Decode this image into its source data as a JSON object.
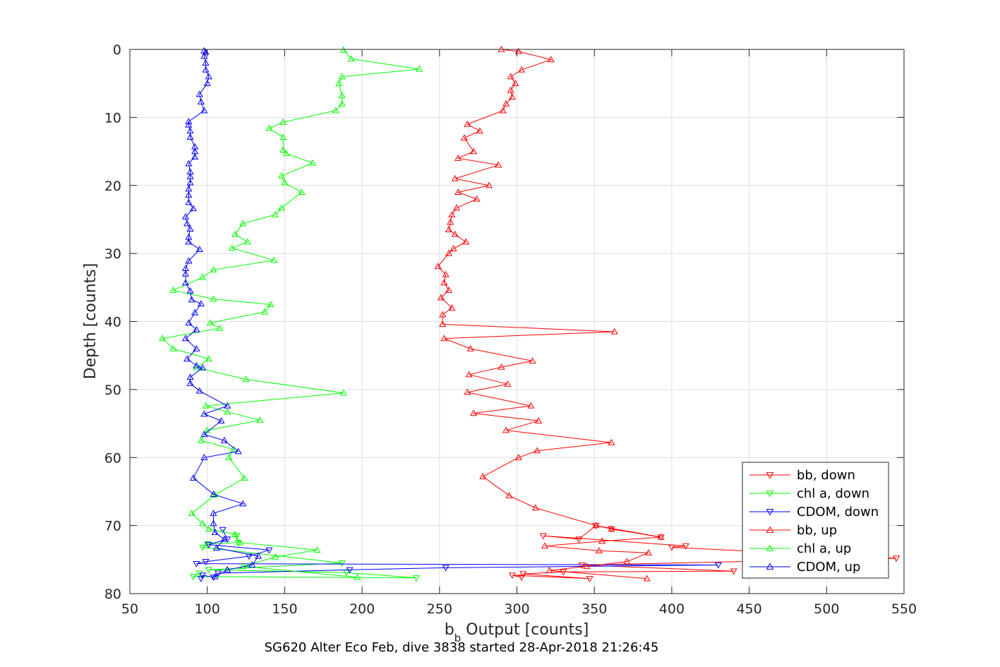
{
  "caption": "SG620 Alter Eco Feb, dive 3838 started 28-Apr-2018 21:26:45",
  "chart_data": {
    "type": "line",
    "xlabel_main": "b",
    "xlabel_sub": "b",
    "xlabel_rest": " Output [counts]",
    "ylabel": "Depth [counts]",
    "xlim": [
      50,
      550
    ],
    "ylim": [
      0,
      80
    ],
    "y_reversed": true,
    "grid": true,
    "legend_position": "bottom-right",
    "xticks": [
      50,
      100,
      150,
      200,
      250,
      300,
      350,
      400,
      450,
      500,
      550
    ],
    "yticks": [
      0,
      10,
      20,
      30,
      40,
      50,
      60,
      70,
      80
    ],
    "series": [
      {
        "name": "bb, down",
        "color": "#ff0000",
        "marker": "triangle-down",
        "points": [
          [
            361,
            70.5
          ],
          [
            393,
            71.7
          ],
          [
            351,
            70.0
          ],
          [
            340,
            72.0
          ],
          [
            317,
            71.5
          ],
          [
            409,
            73.0
          ],
          [
            400,
            73.2
          ],
          [
            545,
            74.8
          ],
          [
            342,
            75.8
          ],
          [
            440,
            76.7
          ],
          [
            330,
            76.8
          ],
          [
            304,
            77.1
          ],
          [
            347,
            77.8
          ],
          [
            297,
            77.3
          ],
          [
            303,
            77.6
          ]
        ]
      },
      {
        "name": "chl a, down",
        "color": "#00ff00",
        "marker": "triangle-down",
        "points": [
          [
            119,
            71.5
          ],
          [
            120,
            72.5
          ],
          [
            100,
            72.7
          ],
          [
            97,
            73.2
          ],
          [
            187,
            75.5
          ],
          [
            101,
            76.5
          ],
          [
            190,
            76.9
          ],
          [
            235,
            77.7
          ],
          [
            91,
            77.5
          ],
          [
            95,
            77.0
          ]
        ]
      },
      {
        "name": "CDOM, down",
        "color": "#0000ff",
        "marker": "triangle-down",
        "points": [
          [
            110,
            70.6
          ],
          [
            113,
            72.0
          ],
          [
            101,
            72.8
          ],
          [
            140,
            73.6
          ],
          [
            127,
            74.5
          ],
          [
            99,
            75.3
          ],
          [
            93,
            75.6
          ],
          [
            430,
            75.8
          ],
          [
            254,
            76.2
          ],
          [
            192,
            76.5
          ],
          [
            107,
            77.0
          ],
          [
            104,
            77.6
          ],
          [
            97,
            77.3
          ],
          [
            96,
            77.8
          ]
        ]
      },
      {
        "name": "bb, up",
        "color": "#ff0000",
        "marker": "triangle-up",
        "points": [
          [
            384,
            77.8
          ],
          [
            321,
            76.6
          ],
          [
            345,
            76.0
          ],
          [
            371,
            75.3
          ],
          [
            385,
            74.0
          ],
          [
            353,
            73.7
          ],
          [
            318,
            73.0
          ],
          [
            355,
            72.3
          ],
          [
            393,
            71.7
          ],
          [
            361,
            70.5
          ],
          [
            351,
            70.0
          ],
          [
            312,
            67.4
          ],
          [
            295,
            65.6
          ],
          [
            278,
            62.8
          ],
          [
            301,
            60.0
          ],
          [
            313,
            59.0
          ],
          [
            361,
            57.8
          ],
          [
            293,
            56.0
          ],
          [
            314,
            54.6
          ],
          [
            272,
            53.5
          ],
          [
            309,
            52.4
          ],
          [
            268,
            50.4
          ],
          [
            294,
            49.2
          ],
          [
            269,
            47.8
          ],
          [
            290,
            46.7
          ],
          [
            310,
            45.8
          ],
          [
            270,
            44.0
          ],
          [
            253,
            42.5
          ],
          [
            363,
            41.5
          ],
          [
            252,
            40.4
          ],
          [
            252,
            39.0
          ],
          [
            258,
            38.0
          ],
          [
            251,
            36.5
          ],
          [
            256,
            35.4
          ],
          [
            253,
            34.3
          ],
          [
            254,
            33.1
          ],
          [
            249,
            31.9
          ],
          [
            256,
            30.0
          ],
          [
            259,
            29.3
          ],
          [
            267,
            28.3
          ],
          [
            260,
            27.2
          ],
          [
            256,
            26.5
          ],
          [
            257,
            25.4
          ],
          [
            258,
            24.3
          ],
          [
            261,
            23.3
          ],
          [
            274,
            22.0
          ],
          [
            262,
            21.0
          ],
          [
            282,
            20.0
          ],
          [
            260,
            19.0
          ],
          [
            288,
            17.0
          ],
          [
            262,
            16.0
          ],
          [
            272,
            15.0
          ],
          [
            266,
            13.0
          ],
          [
            276,
            12.0
          ],
          [
            268,
            11.0
          ],
          [
            291,
            9.0
          ],
          [
            293,
            8.0
          ],
          [
            297,
            7.0
          ],
          [
            296,
            6.0
          ],
          [
            299,
            5.0
          ],
          [
            296,
            4.0
          ],
          [
            303,
            3.0
          ],
          [
            322,
            1.5
          ],
          [
            301,
            0.3
          ],
          [
            290,
            0.0
          ]
        ]
      },
      {
        "name": "chl a, up",
        "color": "#00ff00",
        "marker": "triangle-up",
        "points": [
          [
            197,
            77.6
          ],
          [
            123,
            76.0
          ],
          [
            144,
            74.6
          ],
          [
            171,
            73.6
          ],
          [
            121,
            72.5
          ],
          [
            118,
            71.3
          ],
          [
            101,
            70.5
          ],
          [
            97,
            69.7
          ],
          [
            90,
            68.2
          ],
          [
            105,
            65.5
          ],
          [
            124,
            63.0
          ],
          [
            114,
            60.0
          ],
          [
            117,
            58.8
          ],
          [
            96,
            57.5
          ],
          [
            100,
            56.0
          ],
          [
            134,
            54.5
          ],
          [
            113,
            53.3
          ],
          [
            99,
            52.4
          ],
          [
            188,
            50.5
          ],
          [
            125,
            48.5
          ],
          [
            93,
            46.8
          ],
          [
            101,
            45.5
          ],
          [
            78,
            44.0
          ],
          [
            71,
            42.5
          ],
          [
            108,
            41.0
          ],
          [
            102,
            40.2
          ],
          [
            137,
            38.6
          ],
          [
            141,
            37.5
          ],
          [
            104,
            36.7
          ],
          [
            78,
            35.4
          ],
          [
            97,
            33.5
          ],
          [
            104,
            32.4
          ],
          [
            143,
            31.0
          ],
          [
            116,
            29.2
          ],
          [
            126,
            28.3
          ],
          [
            118,
            27.2
          ],
          [
            123,
            25.6
          ],
          [
            144,
            24.3
          ],
          [
            148,
            23.3
          ],
          [
            161,
            21.0
          ],
          [
            150,
            19.6
          ],
          [
            148,
            18.6
          ],
          [
            168,
            16.7
          ],
          [
            151,
            15.3
          ],
          [
            149,
            14.8
          ],
          [
            149,
            12.9
          ],
          [
            140,
            11.6
          ],
          [
            149,
            10.7
          ],
          [
            183,
            9.0
          ],
          [
            187,
            8.0
          ],
          [
            187,
            6.8
          ],
          [
            185,
            5.0
          ],
          [
            187,
            4.0
          ],
          [
            237,
            2.9
          ],
          [
            193,
            1.4
          ],
          [
            188,
            0.1
          ]
        ]
      },
      {
        "name": "CDOM, up",
        "color": "#0000ff",
        "marker": "triangle-up",
        "points": [
          [
            105,
            77.5
          ],
          [
            113,
            76.5
          ],
          [
            129,
            75.8
          ],
          [
            133,
            74.5
          ],
          [
            106,
            73.3
          ],
          [
            111,
            72.0
          ],
          [
            105,
            71.0
          ],
          [
            104,
            69.7
          ],
          [
            104,
            68.2
          ],
          [
            123,
            66.8
          ],
          [
            104,
            65.4
          ],
          [
            91,
            63.0
          ],
          [
            98,
            60.0
          ],
          [
            120,
            59.1
          ],
          [
            111,
            57.5
          ],
          [
            98,
            56.6
          ],
          [
            109,
            54.6
          ],
          [
            98,
            53.6
          ],
          [
            113,
            52.4
          ],
          [
            95,
            50.2
          ],
          [
            89,
            49.1
          ],
          [
            89,
            48.2
          ],
          [
            97,
            46.8
          ],
          [
            93,
            46.5
          ],
          [
            87,
            45.5
          ],
          [
            93,
            44.0
          ],
          [
            86,
            42.5
          ],
          [
            93,
            41.2
          ],
          [
            88,
            40.2
          ],
          [
            92,
            38.7
          ],
          [
            96,
            37.4
          ],
          [
            90,
            36.8
          ],
          [
            89,
            35.5
          ],
          [
            86,
            34.3
          ],
          [
            86,
            33.0
          ],
          [
            86,
            32.2
          ],
          [
            88,
            31.1
          ],
          [
            95,
            29.4
          ],
          [
            88,
            28.3
          ],
          [
            88,
            27.6
          ],
          [
            89,
            26.4
          ],
          [
            87,
            25.6
          ],
          [
            86,
            24.6
          ],
          [
            91,
            23.4
          ],
          [
            88,
            22.5
          ],
          [
            88,
            21.4
          ],
          [
            88,
            20.5
          ],
          [
            89,
            19.6
          ],
          [
            89,
            18.7
          ],
          [
            89,
            18.0
          ],
          [
            88,
            16.8
          ],
          [
            92,
            15.8
          ],
          [
            92,
            15.0
          ],
          [
            92,
            14.3
          ],
          [
            89,
            12.9
          ],
          [
            89,
            12.0
          ],
          [
            88,
            11.1
          ],
          [
            88,
            10.6
          ],
          [
            98,
            9.0
          ],
          [
            96,
            7.7
          ],
          [
            95,
            6.6
          ],
          [
            100,
            5.0
          ],
          [
            101,
            4.0
          ],
          [
            99,
            3.0
          ],
          [
            99,
            2.0
          ],
          [
            98,
            1.0
          ],
          [
            99,
            0.4
          ],
          [
            98,
            0.2
          ]
        ]
      }
    ]
  }
}
